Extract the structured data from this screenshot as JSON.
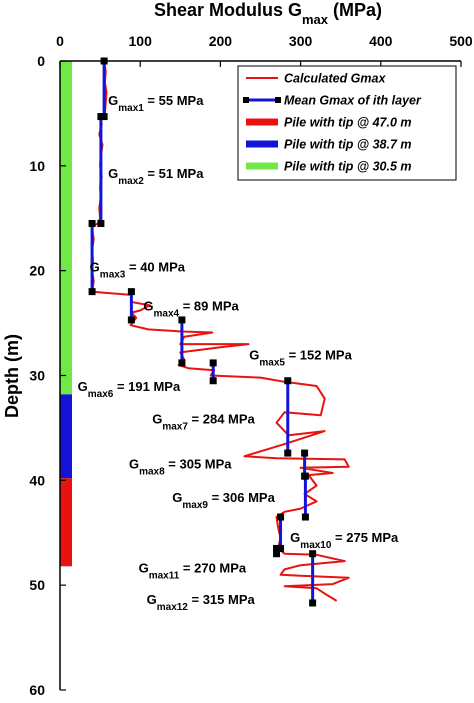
{
  "chart_data": {
    "type": "line",
    "title": {
      "main": "Shear Modulus G",
      "sub": "max",
      "unit": " (MPa)"
    },
    "ylabel": "Depth (m)",
    "xlim": [
      0,
      500
    ],
    "ylim": [
      0,
      60
    ],
    "x_ticks": [
      "0",
      "100",
      "200",
      "300",
      "400",
      "500"
    ],
    "y_ticks": [
      "0",
      "10",
      "20",
      "30",
      "40",
      "50",
      "60"
    ],
    "legend_position": "top-right",
    "legend": [
      {
        "label": "Calculated Gmax",
        "kind": "line",
        "color": "#e8130f"
      },
      {
        "label": "Mean Gmax of ith layer",
        "kind": "line-marker",
        "color": "#1414d8"
      },
      {
        "label": "Pile with tip @ 47.0 m",
        "kind": "bar",
        "color": "#e8130f"
      },
      {
        "label": "Pile with tip @ 38.7 m",
        "kind": "bar",
        "color": "#1414d8"
      },
      {
        "label": "Pile with tip @ 30.5 m",
        "kind": "bar",
        "color": "#70e848"
      }
    ],
    "pile_bar": [
      {
        "from": 0,
        "to": 31.8,
        "color": "#70e848"
      },
      {
        "from": 31.8,
        "to": 39.8,
        "color": "#1414d8"
      },
      {
        "from": 39.8,
        "to": 48.2,
        "color": "#e8130f"
      }
    ],
    "calculated_gmax": [
      [
        55,
        0
      ],
      [
        57,
        1
      ],
      [
        56,
        2
      ],
      [
        58,
        3
      ],
      [
        57,
        4
      ],
      [
        56,
        5
      ],
      [
        50,
        5.3
      ],
      [
        52,
        6
      ],
      [
        49,
        7
      ],
      [
        53,
        8
      ],
      [
        51,
        9
      ],
      [
        50,
        10
      ],
      [
        52,
        11
      ],
      [
        50,
        12
      ],
      [
        51,
        13
      ],
      [
        49,
        14
      ],
      [
        50,
        15
      ],
      [
        47,
        15.5
      ],
      [
        42,
        15.7
      ],
      [
        40,
        16
      ],
      [
        42,
        17
      ],
      [
        40,
        18
      ],
      [
        41,
        19
      ],
      [
        40,
        20
      ],
      [
        42,
        21
      ],
      [
        40,
        22
      ],
      [
        55,
        22.1
      ],
      [
        88,
        22.3
      ],
      [
        90,
        23
      ],
      [
        112,
        23.3
      ],
      [
        100,
        23.8
      ],
      [
        89,
        24
      ],
      [
        95,
        24.5
      ],
      [
        88,
        25.2
      ],
      [
        110,
        25.6
      ],
      [
        152,
        25.8
      ],
      [
        190,
        25.9
      ],
      [
        155,
        26.3
      ],
      [
        150,
        27
      ],
      [
        235,
        27
      ],
      [
        200,
        27.3
      ],
      [
        150,
        27.8
      ],
      [
        155,
        28.5
      ],
      [
        148,
        29
      ],
      [
        160,
        29.3
      ],
      [
        192,
        29.5
      ],
      [
        188,
        30
      ],
      [
        250,
        30.2
      ],
      [
        280,
        30.6
      ],
      [
        300,
        30.8
      ],
      [
        320,
        31
      ],
      [
        330,
        32.2
      ],
      [
        325,
        33.8
      ],
      [
        280,
        33.5
      ],
      [
        270,
        34.5
      ],
      [
        285,
        35.7
      ],
      [
        330,
        35.3
      ],
      [
        282,
        36.5
      ],
      [
        260,
        37
      ],
      [
        230,
        37.7
      ],
      [
        270,
        37.9
      ],
      [
        355,
        38
      ],
      [
        360,
        38.7
      ],
      [
        300,
        38.8
      ],
      [
        340,
        39.3
      ],
      [
        310,
        39.5
      ],
      [
        320,
        40.5
      ],
      [
        305,
        41.3
      ],
      [
        320,
        42
      ],
      [
        300,
        42.7
      ],
      [
        280,
        43
      ],
      [
        270,
        43.5
      ],
      [
        272,
        44.5
      ],
      [
        275,
        45.5
      ],
      [
        272,
        46.5
      ],
      [
        280,
        47
      ],
      [
        320,
        47.1
      ],
      [
        355,
        47.7
      ],
      [
        300,
        48.1
      ],
      [
        280,
        48.5
      ],
      [
        275,
        49
      ],
      [
        300,
        49.1
      ],
      [
        360,
        49.3
      ],
      [
        340,
        49.9
      ],
      [
        280,
        50.1
      ],
      [
        320,
        50.3
      ],
      [
        330,
        50.8
      ],
      [
        345,
        51.5
      ]
    ],
    "mean_layers": [
      {
        "gmax": 55,
        "top": 0,
        "bottom": 5.3
      },
      {
        "gmax": 51,
        "top": 5.3,
        "bottom": 15.5
      },
      {
        "gmax": 40,
        "top": 15.5,
        "bottom": 22
      },
      {
        "gmax": 89,
        "top": 22,
        "bottom": 24.7
      },
      {
        "gmax": 152,
        "top": 24.7,
        "bottom": 28.8
      },
      {
        "gmax": 191,
        "top": 28.8,
        "bottom": 30.5
      },
      {
        "gmax": 284,
        "top": 30.5,
        "bottom": 37.4
      },
      {
        "gmax": 305,
        "top": 37.4,
        "bottom": 39.6
      },
      {
        "gmax": 306,
        "top": 39.6,
        "bottom": 43.5
      },
      {
        "gmax": 275,
        "top": 43.5,
        "bottom": 46.5
      },
      {
        "gmax": 270,
        "top": 46.5,
        "bottom": 47
      },
      {
        "gmax": 315,
        "top": 47,
        "bottom": 51.7
      }
    ],
    "annotations": [
      {
        "idx": "1",
        "value": " = 55 MPa",
        "x": 60,
        "y": 3.7
      },
      {
        "idx": "2",
        "value": " = 51 MPa",
        "x": 60,
        "y": 10.7
      },
      {
        "idx": "3",
        "value": " = 40 MPa",
        "x": 37,
        "y": 19.6
      },
      {
        "idx": "4",
        "value": " = 89 MPa",
        "x": 104,
        "y": 23.3
      },
      {
        "idx": "5",
        "value": " = 152 MPa",
        "x": 236,
        "y": 28
      },
      {
        "idx": "6",
        "value": " = 191 MPa",
        "x": 22,
        "y": 31
      },
      {
        "idx": "7",
        "value": " = 284 MPa",
        "x": 115,
        "y": 34.1
      },
      {
        "idx": "8",
        "value": " = 305 MPa",
        "x": 86,
        "y": 38.4
      },
      {
        "idx": "9",
        "value": " = 306 MPa",
        "x": 140,
        "y": 41.6
      },
      {
        "idx": "10",
        "value": " = 275 MPa",
        "x": 287,
        "y": 45.4
      },
      {
        "idx": "11",
        "value": " = 270 MPa",
        "x": 98,
        "y": 48.3
      },
      {
        "idx": "12",
        "value": " = 315 MPa",
        "x": 108,
        "y": 51.3
      }
    ]
  }
}
